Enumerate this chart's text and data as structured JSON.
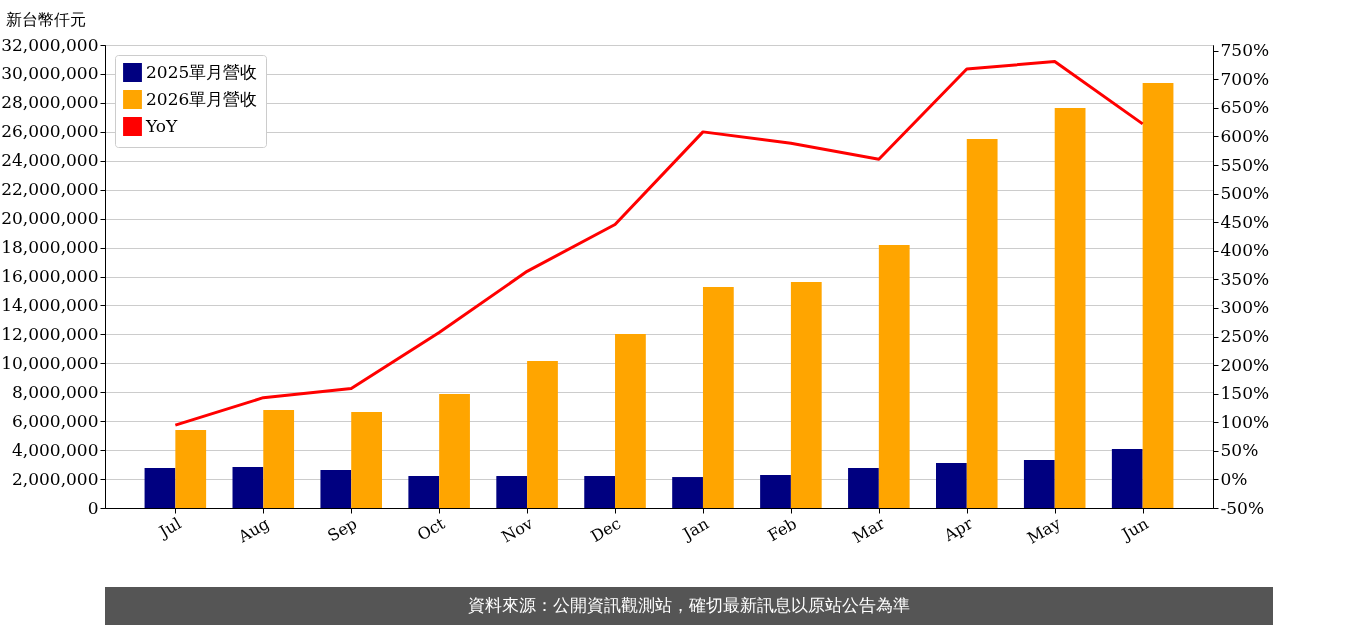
{
  "chart_data": {
    "type": "bar",
    "ylabel": "新台幣仟元",
    "categories": [
      "Jul",
      "Aug",
      "Sep",
      "Oct",
      "Nov",
      "Dec",
      "Jan",
      "Feb",
      "Mar",
      "Apr",
      "May",
      "Jun"
    ],
    "series": [
      {
        "name": "2025單月營收",
        "color": "#000080",
        "values": [
          2760000,
          2830000,
          2630000,
          2210000,
          2210000,
          2210000,
          2140000,
          2280000,
          2760000,
          3110000,
          3320000,
          4080000
        ]
      },
      {
        "name": "2026單月營收",
        "color": "#ffa500",
        "values": [
          5390000,
          6770000,
          6630000,
          7880000,
          10160000,
          12020000,
          15270000,
          15620000,
          18180000,
          25500000,
          27640000,
          29370000
        ]
      },
      {
        "name": "YoY",
        "type": "line",
        "axis": "y2",
        "color": "#ff0000",
        "values": [
          95,
          143,
          159,
          257,
          364,
          446,
          608,
          588,
          560,
          718,
          731,
          622
        ]
      }
    ],
    "ylim": [
      0,
      32000000
    ],
    "yticks": [
      {
        "value": 0,
        "label": "0"
      },
      {
        "value": 2000000,
        "label": "2,000,000"
      },
      {
        "value": 4000000,
        "label": "4,000,000"
      },
      {
        "value": 6000000,
        "label": "6,000,000"
      },
      {
        "value": 8000000,
        "label": "8,000,000"
      },
      {
        "value": 10000000,
        "label": "10,000,000"
      },
      {
        "value": 12000000,
        "label": "12,000,000"
      },
      {
        "value": 14000000,
        "label": "14,000,000"
      },
      {
        "value": 16000000,
        "label": "16,000,000"
      },
      {
        "value": 18000000,
        "label": "18,000,000"
      },
      {
        "value": 20000000,
        "label": "20,000,000"
      },
      {
        "value": 22000000,
        "label": "22,000,000"
      },
      {
        "value": 24000000,
        "label": "24,000,000"
      },
      {
        "value": 26000000,
        "label": "26,000,000"
      },
      {
        "value": 28000000,
        "label": "28,000,000"
      },
      {
        "value": 30000000,
        "label": "30,000,000"
      },
      {
        "value": 32000000,
        "label": "32,000,000"
      }
    ],
    "y2lim": [
      -50,
      760
    ],
    "y2ticks": [
      {
        "value": -50,
        "label": "-50%"
      },
      {
        "value": 0,
        "label": "0%"
      },
      {
        "value": 50,
        "label": "50%"
      },
      {
        "value": 100,
        "label": "100%"
      },
      {
        "value": 150,
        "label": "150%"
      },
      {
        "value": 200,
        "label": "200%"
      },
      {
        "value": 250,
        "label": "250%"
      },
      {
        "value": 300,
        "label": "300%"
      },
      {
        "value": 350,
        "label": "350%"
      },
      {
        "value": 400,
        "label": "400%"
      },
      {
        "value": 450,
        "label": "450%"
      },
      {
        "value": 500,
        "label": "500%"
      },
      {
        "value": 550,
        "label": "550%"
      },
      {
        "value": 600,
        "label": "600%"
      },
      {
        "value": 650,
        "label": "650%"
      },
      {
        "value": 700,
        "label": "700%"
      },
      {
        "value": 750,
        "label": "750%"
      }
    ],
    "grid": "y",
    "legend": "top left",
    "annotations": [
      "資料來源：公開資訊觀測站，確切最新訊息以原站公告為準"
    ]
  }
}
